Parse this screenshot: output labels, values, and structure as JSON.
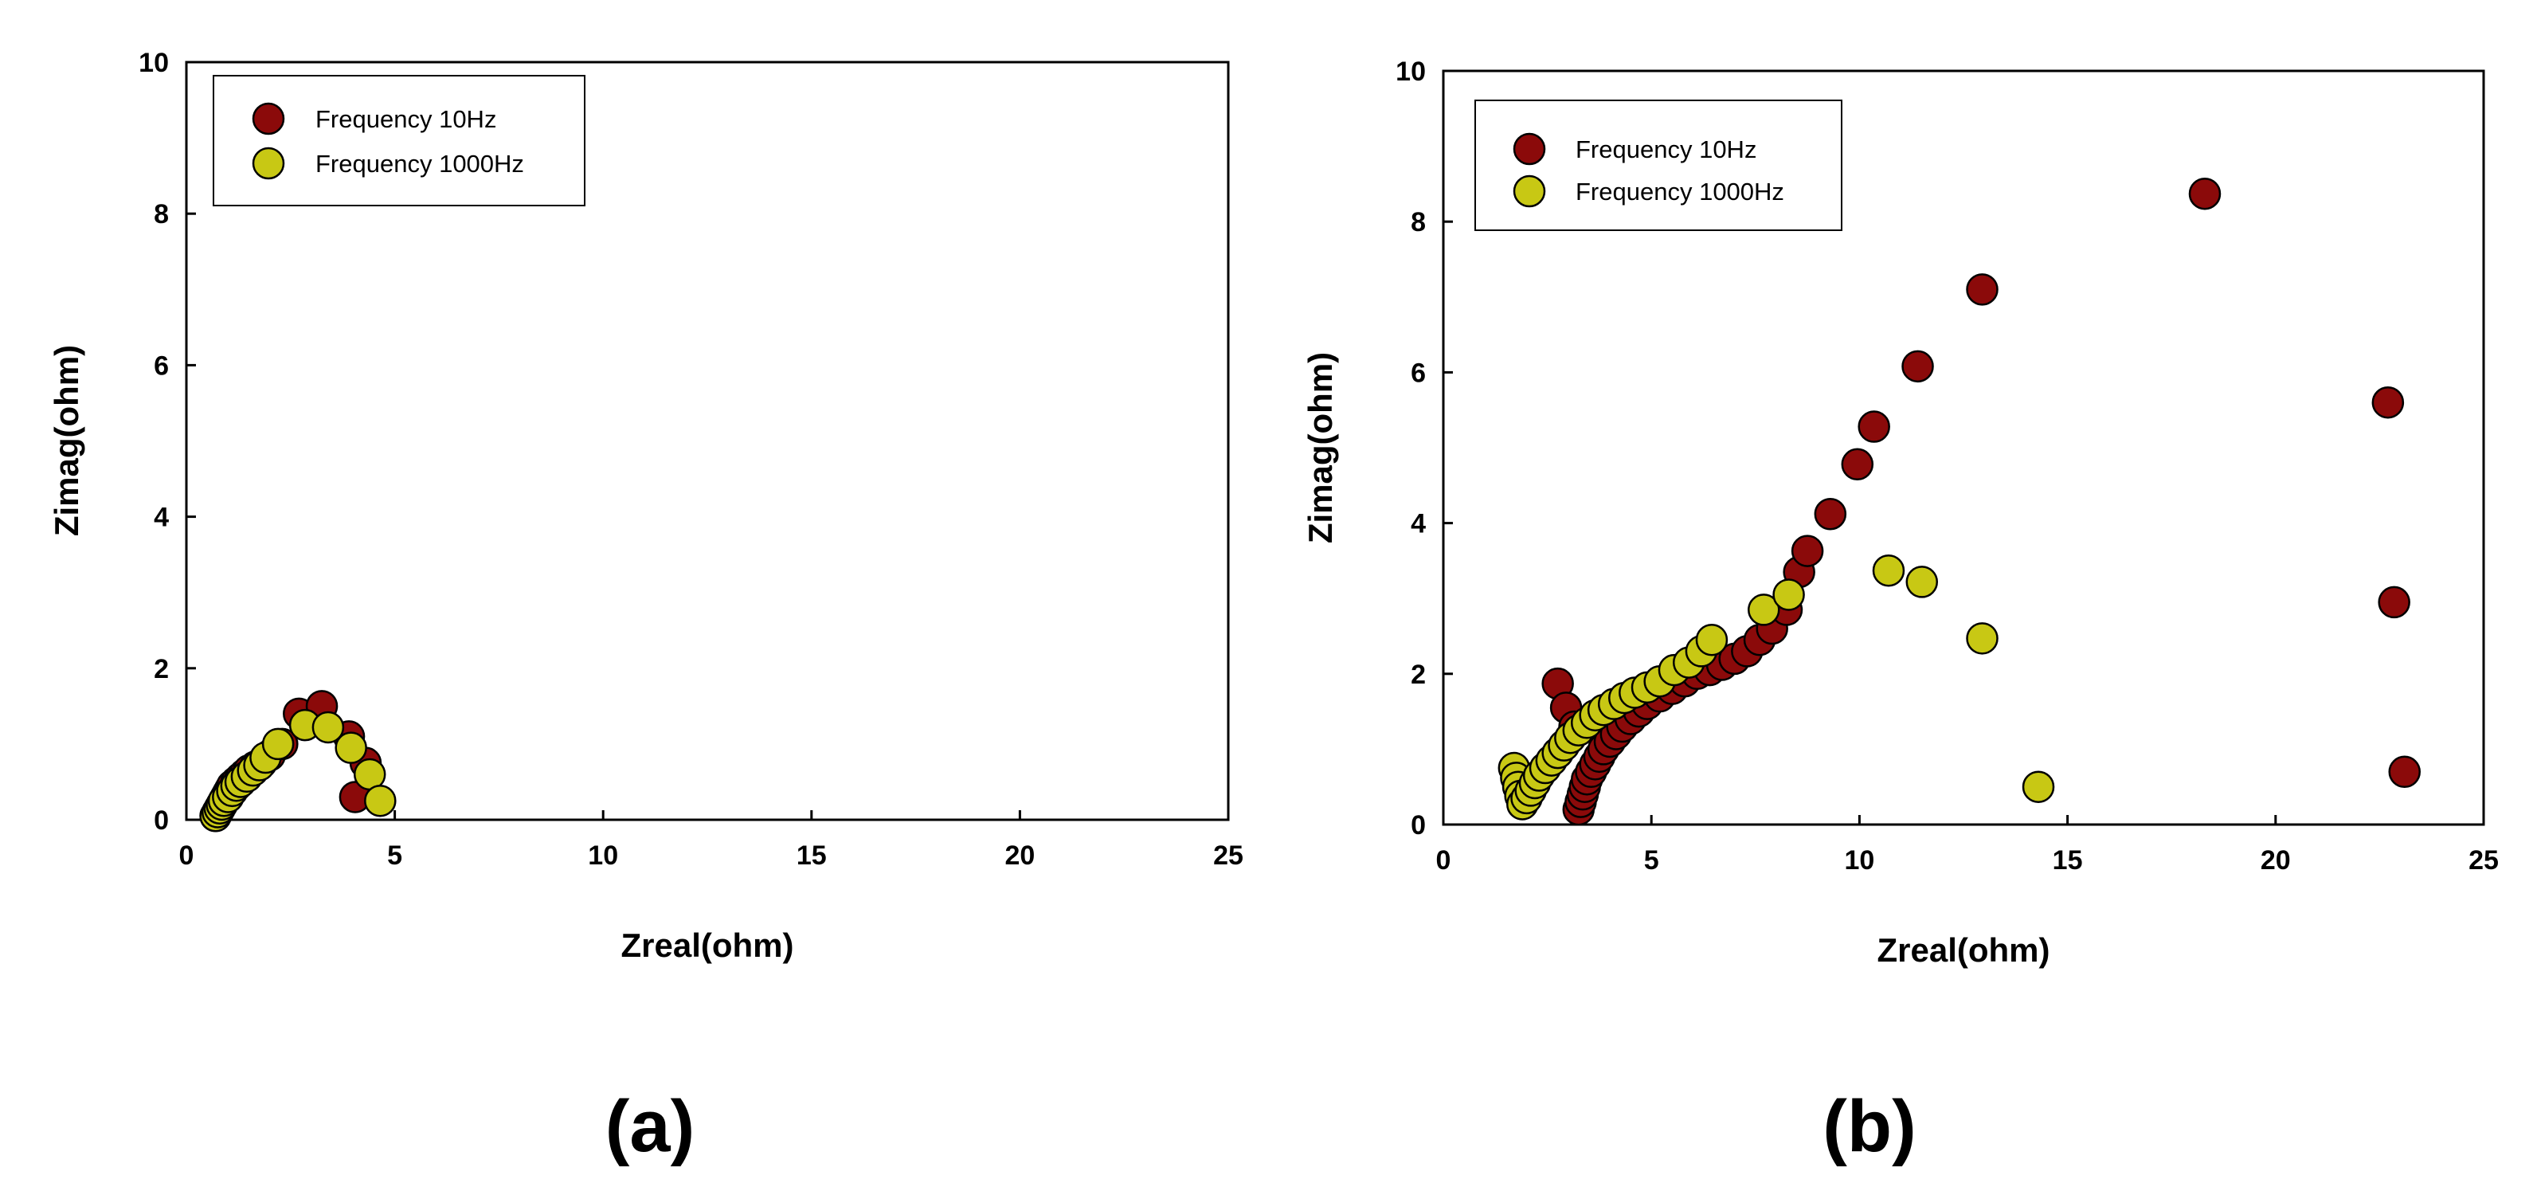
{
  "colors": {
    "series_10hz": "#8B0A0A",
    "series_1000hz": "#C8C814",
    "marker_edge": "#000000",
    "axis": "#000000",
    "background": "#ffffff"
  },
  "chart_data": [
    {
      "type": "scatter",
      "panel_label": "(a)",
      "title": "",
      "xlabel": "Zreal(ohm)",
      "ylabel": "Zimag(ohm)",
      "xlim": [
        0,
        25
      ],
      "ylim": [
        0,
        10
      ],
      "xticks": [
        0,
        5,
        10,
        15,
        20,
        25
      ],
      "yticks": [
        0,
        2,
        4,
        6,
        8,
        10
      ],
      "legend": "top-left",
      "series": [
        {
          "name": "Frequency 10Hz",
          "color": "#8B0A0A",
          "x": [
            0.7,
            0.75,
            0.8,
            0.85,
            0.9,
            0.95,
            1.0,
            1.05,
            1.1,
            1.2,
            1.3,
            1.4,
            1.5,
            1.65,
            1.8,
            2.0,
            2.3,
            2.7,
            3.25,
            3.9,
            4.3,
            4.05
          ],
          "y": [
            0.05,
            0.1,
            0.15,
            0.2,
            0.25,
            0.3,
            0.35,
            0.4,
            0.45,
            0.5,
            0.55,
            0.6,
            0.65,
            0.7,
            0.75,
            0.85,
            1.0,
            1.4,
            1.5,
            1.1,
            0.75,
            0.3
          ]
        },
        {
          "name": "Frequency 1000Hz",
          "color": "#C8C814",
          "x": [
            0.7,
            0.75,
            0.8,
            0.85,
            0.9,
            1.0,
            1.1,
            1.2,
            1.3,
            1.45,
            1.6,
            1.75,
            1.9,
            2.2,
            2.85,
            3.4,
            3.95,
            4.4,
            4.65
          ],
          "y": [
            0.05,
            0.1,
            0.15,
            0.2,
            0.25,
            0.3,
            0.38,
            0.45,
            0.5,
            0.57,
            0.65,
            0.72,
            0.82,
            1.0,
            1.25,
            1.22,
            0.95,
            0.6,
            0.25
          ]
        }
      ]
    },
    {
      "type": "scatter",
      "panel_label": "(b)",
      "title": "",
      "xlabel": "Zreal(ohm)",
      "ylabel": "Zimag(ohm)",
      "xlim": [
        0,
        25
      ],
      "ylim": [
        0,
        10
      ],
      "xticks": [
        0,
        5,
        10,
        15,
        20,
        25
      ],
      "yticks": [
        0,
        2,
        4,
        6,
        8,
        10
      ],
      "legend": "top-left",
      "series": [
        {
          "name": "Frequency 10Hz",
          "color": "#8B0A0A",
          "x": [
            2.75,
            2.95,
            3.15,
            3.25,
            3.3,
            3.35,
            3.4,
            3.45,
            3.55,
            3.65,
            3.75,
            3.85,
            4.0,
            4.15,
            4.3,
            4.5,
            4.7,
            4.9,
            5.2,
            5.5,
            5.8,
            6.1,
            6.4,
            6.7,
            7.0,
            7.3,
            7.6,
            7.9,
            8.25,
            8.55,
            8.75,
            9.3,
            9.95,
            10.35,
            11.4,
            12.95,
            18.3,
            22.7,
            22.85,
            23.1
          ],
          "y": [
            1.87,
            1.55,
            1.3,
            0.2,
            0.3,
            0.4,
            0.5,
            0.6,
            0.7,
            0.8,
            0.9,
            1.0,
            1.1,
            1.2,
            1.3,
            1.4,
            1.5,
            1.6,
            1.7,
            1.8,
            1.9,
            2.0,
            2.05,
            2.12,
            2.2,
            2.3,
            2.45,
            2.6,
            2.85,
            3.35,
            3.63,
            4.12,
            4.78,
            5.28,
            6.08,
            7.1,
            8.37,
            5.6,
            2.95,
            0.7
          ]
        },
        {
          "name": "Frequency 1000Hz",
          "color": "#C8C814",
          "x": [
            1.7,
            1.75,
            1.8,
            1.85,
            1.9,
            2.0,
            2.1,
            2.2,
            2.3,
            2.45,
            2.6,
            2.75,
            2.9,
            3.05,
            3.25,
            3.45,
            3.65,
            3.85,
            4.1,
            4.35,
            4.6,
            4.9,
            5.2,
            5.55,
            5.9,
            6.2,
            6.45,
            7.7,
            8.3,
            10.7,
            11.5,
            12.95,
            14.3
          ],
          "y": [
            0.75,
            0.62,
            0.5,
            0.38,
            0.27,
            0.35,
            0.45,
            0.55,
            0.65,
            0.75,
            0.85,
            0.95,
            1.05,
            1.15,
            1.25,
            1.35,
            1.45,
            1.52,
            1.6,
            1.68,
            1.75,
            1.82,
            1.9,
            2.05,
            2.15,
            2.3,
            2.45,
            2.85,
            3.05,
            3.37,
            3.22,
            2.47,
            0.5
          ]
        }
      ]
    }
  ]
}
